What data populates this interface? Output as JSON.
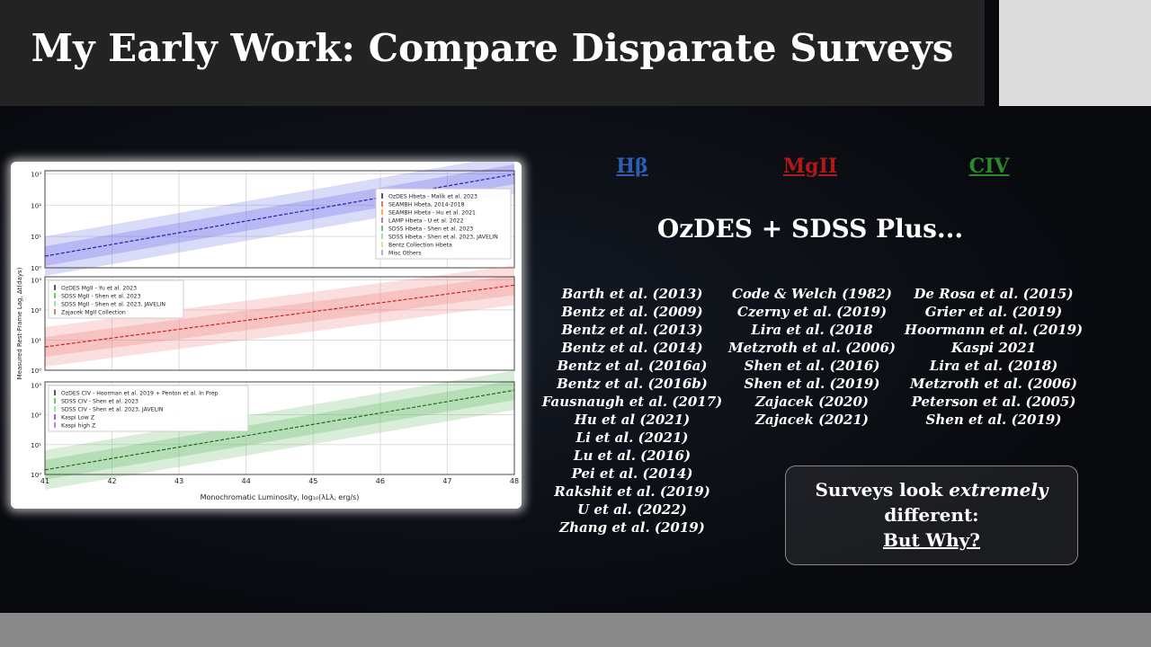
{
  "header": {
    "title": "My Early Work: Compare Disparate Surveys"
  },
  "figure": {
    "y_label": "Measured Rest-Frame Lag, Δt(days)",
    "x_label": "Monochromatic Luminosity, log₁₀(λLλ, erg/s)",
    "x_ticks": [
      "41",
      "42",
      "43",
      "44",
      "45",
      "46",
      "47",
      "48"
    ],
    "y_ticks": [
      "10⁰",
      "10¹",
      "10²",
      "10³"
    ],
    "panels": [
      {
        "legend": [
          "OzDES Hbeta - Malik et al. 2023",
          "SEAMBH Hbeta, 2014-2018",
          "SEAMBH Hbeta - Hu et al. 2021",
          "LAMP Hbeta - U et al. 2022",
          "SDSS Hbeta - Shen et al. 2023",
          "SDSS Hbeta - Shen et al. 2023, JAVELIN",
          "Bentz Collection Hbeta",
          "Misc Others"
        ]
      },
      {
        "legend": [
          "OzDES MgII - Yu et al. 2023",
          "SDSS MgII - Shen et al. 2023",
          "SDSS MgII - Shen et al. 2023, JAVELIN",
          "Zajacek MgII Collection"
        ]
      },
      {
        "legend": [
          "OzDES CIV - Hoorman et al. 2019 + Penton et al. In Prep",
          "SDSS CIV - Shen et al. 2023",
          "SDSS CIV - Shen et al. 2023, JAVELIN",
          "Kaspi Low Z",
          "Kaspi high Z"
        ]
      }
    ]
  },
  "lines": {
    "headings": [
      "Hβ",
      "MgII",
      "CIV"
    ],
    "subtitle": "OzDES + SDSS Plus...",
    "references": [
      [
        "Barth et al. (2013)",
        "Bentz et al. (2009)",
        "Bentz et al. (2013)",
        "Bentz et al. (2014)",
        "Bentz et al. (2016a)",
        "Bentz et al. (2016b)",
        "Fausnaugh et al. (2017)",
        "Hu et al (2021)",
        "Li et al. (2021)",
        "Lu et al. (2016)",
        "Pei et al. (2014)",
        "Rakshit et al. (2019)",
        "U et al. (2022)",
        "Zhang et al. (2019)"
      ],
      [
        "Code & Welch (1982)",
        "Czerny et al. (2019)",
        "Lira et al. (2018",
        "Metzroth et al. (2006)",
        "Shen et al. (2016)",
        "Shen et al. (2019)",
        "Zajacek (2020)",
        "Zajacek (2021)"
      ],
      [
        "De Rosa et al. (2015)",
        "Grier et al. (2019)",
        "Hoormann et al. (2019)",
        "Kaspi 2021",
        "Lira et al. (2018)",
        "Metzroth et al. (2006)",
        "Peterson et al. (2005)",
        "Shen et al. (2019)"
      ]
    ]
  },
  "callout": {
    "pre": "Surveys look",
    "emphasis": "extremely",
    "post": "different:",
    "question": "But Why?"
  }
}
